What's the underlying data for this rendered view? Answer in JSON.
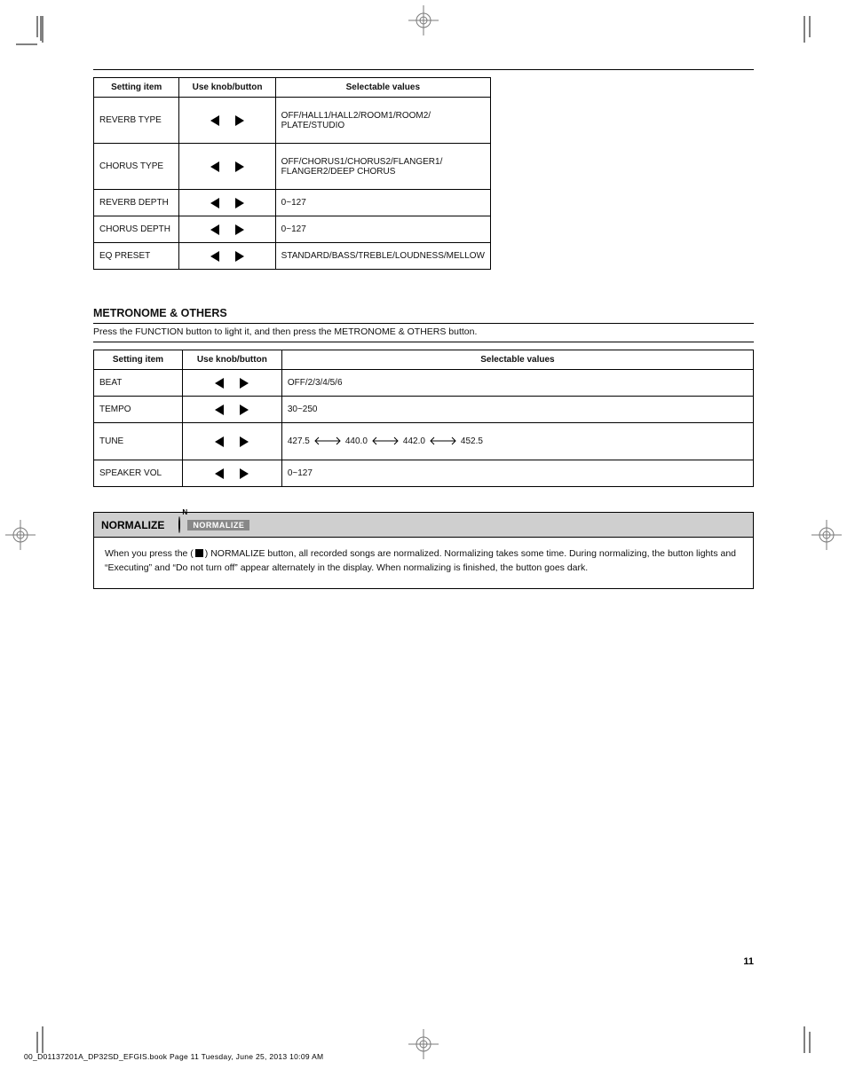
{
  "page_number": "11",
  "gutter_text": "00_D01137201A_DP32SD_EFGIS.book  Page 11  Tuesday, June 25, 2013  10:09 AM",
  "table1": {
    "widths": {
      "c1": 100,
      "c2": 110,
      "c3": 234
    },
    "headers": [
      "Setting item",
      "Use knob/button",
      "Selectable values"
    ],
    "rows": [
      {
        "h": "tall",
        "c1": "REVERB TYPE",
        "c3_lines": [
          "OFF/HALL1/HALL2/ROOM1/ROOM2/",
          "PLATE/STUDIO"
        ]
      },
      {
        "h": "tall",
        "c1": "CHORUS TYPE",
        "c3_lines": [
          "OFF/CHORUS1/CHORUS2/FLANGER1/",
          "FLANGER2/DEEP CHORUS"
        ]
      },
      {
        "h": "short",
        "c1": "REVERB DEPTH",
        "c3_lines": [
          "0~127"
        ]
      },
      {
        "h": "short",
        "c1": "CHORUS DEPTH",
        "c3_lines": [
          "0~127"
        ]
      },
      {
        "h": "short",
        "c1": "EQ PRESET",
        "c3_lines": [
          "STANDARD/BASS/TREBLE/LOUDNESS/MELLOW"
        ]
      }
    ]
  },
  "section2": {
    "heading": "METRONOME & OTHERS",
    "sub": "Press the FUNCTION button to light it, and then press the METRONOME & OTHERS button."
  },
  "table2": {
    "widths": {
      "c1": 100,
      "c2": 110,
      "c3": 530
    },
    "headers": [
      "Setting item",
      "Use knob/button",
      "Selectable values"
    ],
    "rows": [
      {
        "h": "short",
        "c1": "BEAT",
        "c3_html": "OFF/2/3/4/5/6"
      },
      {
        "h": "short",
        "c1": "TEMPO",
        "c3_html": "30~250"
      },
      {
        "h": "mid",
        "c1": "TUNE",
        "c3_html_tune": true,
        "tune_left": "427.5",
        "tune_mid1": "440.0",
        "tune_mid2": "442.0",
        "tune_right": "452.5"
      },
      {
        "h": "short",
        "c1": "SPEAKER VOL",
        "c3_html": "0~127"
      }
    ]
  },
  "normalize": {
    "label": "NORMALIZE",
    "badge": "NORMALIZE",
    "badge_letter": "N",
    "body_line1_pre": "When you press the (",
    "body_line1_post": ") NORMALIZE button, all recorded songs are normalized. Normalizing takes some time. During",
    "body_line2": "normalizing, the button lights and “Executing” and “Do not turn off” appear alternately in the display. When normalizing is finished, the button goes dark."
  },
  "colors": {
    "text": "#111111",
    "border": "#000000",
    "norm_head_bg": "#cfcfcf",
    "norm_badge_bg": "#888888",
    "norm_badge_fg": "#ffffff"
  }
}
